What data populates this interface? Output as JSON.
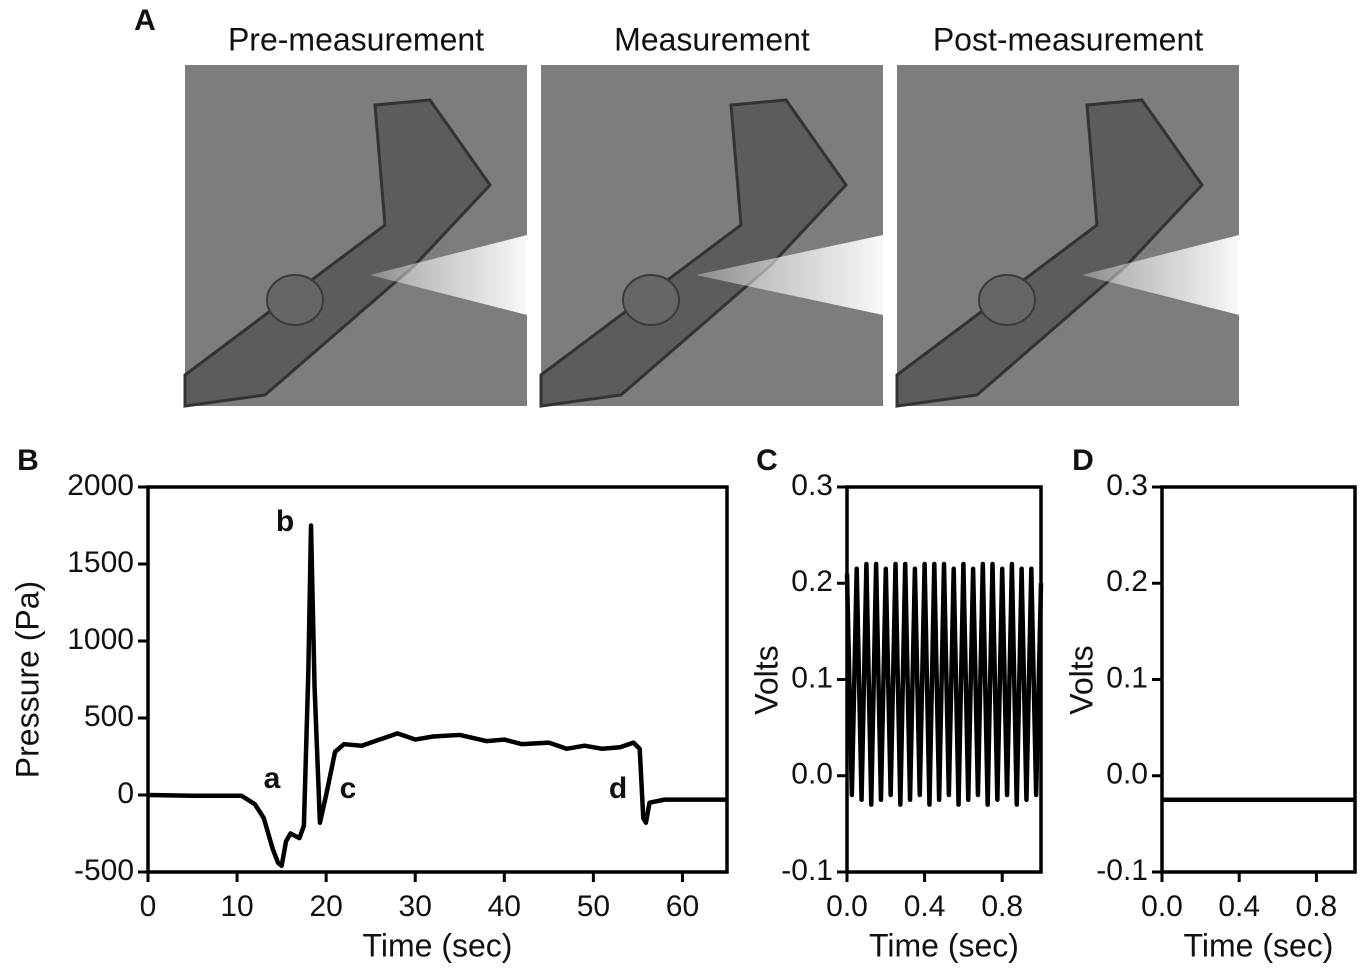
{
  "panel_labels": [
    "A",
    "B",
    "C",
    "D"
  ],
  "images": [
    {
      "title": "Pre-measurement"
    },
    {
      "title": "Measurement"
    },
    {
      "title": "Post-measurement"
    }
  ],
  "chart_data": [
    {
      "type": "line",
      "x_label": "Time (sec)",
      "y_label": "Pressure (Pa)",
      "color": "#000000",
      "xlim": [
        0,
        65
      ],
      "ylim": [
        -500,
        2000
      ],
      "xticks": [
        0,
        10,
        20,
        30,
        40,
        50,
        60
      ],
      "yticks": [
        -500,
        0,
        500,
        1000,
        1500,
        2000
      ],
      "x": [
        0,
        5,
        10.5,
        12,
        13,
        14,
        14.6,
        15,
        15.5,
        16,
        17,
        17.5,
        18,
        18.3,
        18.7,
        19.3,
        20,
        21,
        22,
        24,
        26,
        28,
        30,
        32,
        35,
        38,
        40,
        42,
        45,
        47,
        49,
        51,
        53,
        54.5,
        55.2,
        55.6,
        55.9,
        56.3,
        58,
        65
      ],
      "values": [
        0,
        -5,
        -5,
        -60,
        -150,
        -350,
        -440,
        -460,
        -300,
        -250,
        -280,
        -200,
        800,
        1750,
        700,
        -180,
        0,
        280,
        330,
        320,
        360,
        400,
        360,
        380,
        390,
        350,
        360,
        330,
        340,
        300,
        320,
        300,
        310,
        340,
        300,
        -150,
        -180,
        -50,
        -30,
        -30
      ],
      "annotations": [
        "a",
        "b",
        "c",
        "d"
      ]
    },
    {
      "type": "line",
      "x_label": "Time (sec)",
      "y_label": "Volts",
      "color": "#000000",
      "xlim": [
        0,
        1
      ],
      "ylim": [
        -0.1,
        0.3
      ],
      "xticks": [
        {
          "value": 0,
          "label": "0.0"
        },
        0.4,
        0.8
      ],
      "yticks": [
        -0.1,
        {
          "value": 0,
          "label": "0.0"
        },
        0.1,
        0.2,
        0.3
      ],
      "x": [
        0,
        0.025,
        0.05,
        0.075,
        0.1,
        0.125,
        0.15,
        0.175,
        0.2,
        0.225,
        0.25,
        0.275,
        0.3,
        0.325,
        0.35,
        0.375,
        0.4,
        0.425,
        0.45,
        0.475,
        0.5,
        0.525,
        0.55,
        0.575,
        0.6,
        0.625,
        0.65,
        0.675,
        0.7,
        0.725,
        0.75,
        0.775,
        0.8,
        0.825,
        0.85,
        0.875,
        0.9,
        0.925,
        0.95,
        0.975,
        1
      ],
      "values": [
        0.21,
        -0.02,
        0.215,
        -0.025,
        0.22,
        -0.03,
        0.22,
        -0.025,
        0.215,
        -0.02,
        0.22,
        -0.03,
        0.22,
        -0.025,
        0.215,
        -0.02,
        0.22,
        -0.03,
        0.22,
        -0.025,
        0.22,
        -0.02,
        0.215,
        -0.03,
        0.22,
        -0.025,
        0.215,
        -0.02,
        0.22,
        -0.03,
        0.22,
        -0.025,
        0.215,
        -0.02,
        0.22,
        -0.03,
        0.215,
        -0.025,
        0.215,
        -0.02,
        0.2
      ]
    },
    {
      "type": "line",
      "x_label": "Time (sec)",
      "y_label": "Volts",
      "color": "#000000",
      "xlim": [
        0,
        1
      ],
      "ylim": [
        -0.1,
        0.3
      ],
      "xticks": [
        {
          "value": 0,
          "label": "0.0"
        },
        0.4,
        0.8
      ],
      "yticks": [
        -0.1,
        {
          "value": 0,
          "label": "0.0"
        },
        0.1,
        0.2,
        0.3
      ],
      "x": [
        0,
        0.25,
        0.5,
        0.75,
        1
      ],
      "values": [
        -0.025,
        -0.025,
        -0.025,
        -0.025,
        -0.025
      ]
    }
  ]
}
